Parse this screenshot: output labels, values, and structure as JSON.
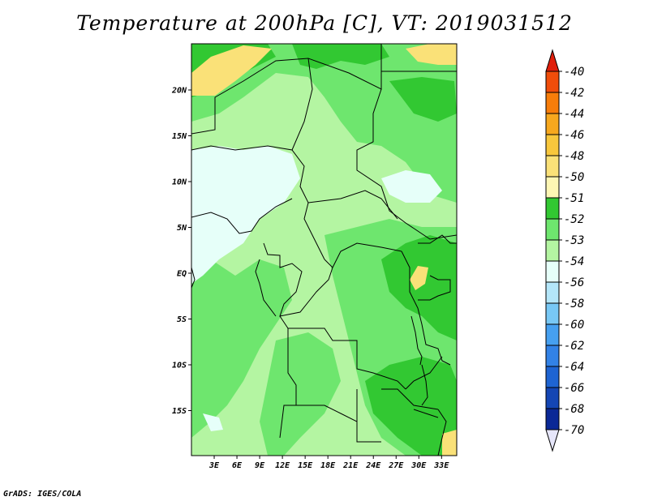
{
  "title": "Temperature at 200hPa [C], VT: 2019031512",
  "credit": "GrADS: IGES/COLA",
  "map": {
    "lat_labels": [
      "20N",
      "15N",
      "10N",
      "5N",
      "EQ",
      "5S",
      "10S",
      "15S"
    ],
    "lat_values": [
      20,
      15,
      10,
      5,
      0,
      -5,
      -10,
      -15
    ],
    "lon_labels": [
      "3E",
      "6E",
      "9E",
      "12E",
      "15E",
      "18E",
      "21E",
      "24E",
      "27E",
      "30E",
      "33E"
    ],
    "lon_values": [
      3,
      6,
      9,
      12,
      15,
      18,
      21,
      24,
      27,
      30,
      33
    ],
    "lat_range": [
      -20,
      25
    ],
    "lon_range": [
      0,
      35
    ]
  },
  "colorbar": {
    "labels": [
      "-40",
      "-42",
      "-44",
      "-46",
      "-48",
      "-50",
      "-51",
      "-52",
      "-53",
      "-54",
      "-56",
      "-58",
      "-60",
      "-62",
      "-64",
      "-66",
      "-68",
      "-70"
    ],
    "colors": [
      "#e81e0a",
      "#f04d0a",
      "#f77d0a",
      "#f7a81e",
      "#f8c73c",
      "#fae178",
      "#fdf6b4",
      "#32c832",
      "#6ee66e",
      "#b4f5a2",
      "#e6fff9",
      "#b4e6f9",
      "#78c8f5",
      "#46a0f0",
      "#3282e6",
      "#1e64d2",
      "#1446b4",
      "#0a2896",
      "#0a0a6e"
    ],
    "top_arrow_color": "#e01e0a",
    "bottom_arrow_color": "#e6e6fa"
  },
  "field_colors": {
    "pale_green": "#b4f5a2",
    "mid_green": "#6ee66e",
    "dark_green": "#32c832",
    "cyan": "#e6fff9",
    "yellow": "#fae178"
  }
}
